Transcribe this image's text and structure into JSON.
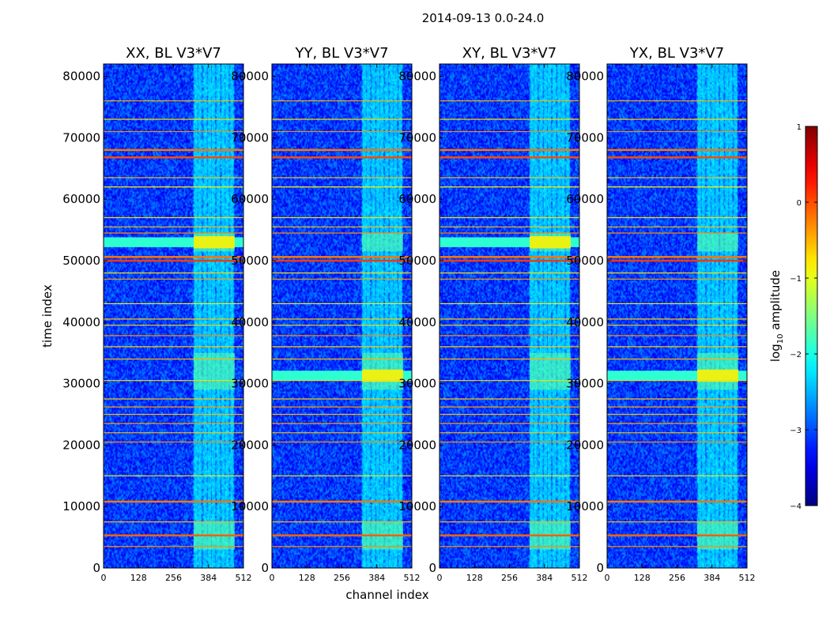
{
  "figure_title": "2014-09-13 0.0-24.0",
  "chart_data": {
    "type": "heatmap",
    "title": "2014-09-13 0.0-24.0",
    "xlabel": "channel index",
    "ylabel": "time index",
    "xlim": [
      0,
      512
    ],
    "ylim": [
      0,
      82000
    ],
    "x_ticks": [
      0,
      128,
      256,
      384,
      512
    ],
    "y_ticks": [
      0,
      10000,
      20000,
      30000,
      40000,
      50000,
      60000,
      70000,
      80000
    ],
    "panels": [
      {
        "title": "XX, BL V3*V7",
        "strong_band_time": 53000
      },
      {
        "title": "YY, BL V3*V7",
        "strong_band_time": 31300
      },
      {
        "title": "XY, BL V3*V7",
        "strong_band_time": 53000
      },
      {
        "title": "YX, BL V3*V7",
        "strong_band_time": 31300
      }
    ],
    "background_log_amplitude": -3.1,
    "rfi_channel_range": [
      330,
      480
    ],
    "rfi_channels": [
      338,
      352,
      372,
      388,
      402,
      420,
      438,
      452,
      470
    ],
    "rfi_time_blocks": [
      [
        3000,
        7500
      ],
      [
        29000,
        35000
      ],
      [
        51500,
        54500
      ]
    ],
    "horizontal_rfi_lines": [
      {
        "time": 3500,
        "log_amplitude": -0.3
      },
      {
        "time": 5300,
        "log_amplitude": -0.1
      },
      {
        "time": 7500,
        "log_amplitude": -0.5
      },
      {
        "time": 10800,
        "log_amplitude": -0.2
      },
      {
        "time": 15000,
        "log_amplitude": -0.8
      },
      {
        "time": 20500,
        "log_amplitude": -0.3
      },
      {
        "time": 22000,
        "log_amplitude": -0.6
      },
      {
        "time": 23500,
        "log_amplitude": -0.4
      },
      {
        "time": 25000,
        "log_amplitude": -0.5
      },
      {
        "time": 26200,
        "log_amplitude": -0.4
      },
      {
        "time": 27500,
        "log_amplitude": -0.6
      },
      {
        "time": 30500,
        "log_amplitude": -0.7
      },
      {
        "time": 34000,
        "log_amplitude": -0.5
      },
      {
        "time": 36000,
        "log_amplitude": -0.6
      },
      {
        "time": 37800,
        "log_amplitude": -0.3
      },
      {
        "time": 39500,
        "log_amplitude": -0.7
      },
      {
        "time": 40500,
        "log_amplitude": -0.6
      },
      {
        "time": 43000,
        "log_amplitude": -0.8
      },
      {
        "time": 47000,
        "log_amplitude": -0.4
      },
      {
        "time": 48000,
        "log_amplitude": -0.7
      },
      {
        "time": 50000,
        "log_amplitude": 0.1
      },
      {
        "time": 50600,
        "log_amplitude": -0.2
      },
      {
        "time": 54500,
        "log_amplitude": -0.3
      },
      {
        "time": 55500,
        "log_amplitude": -0.6
      },
      {
        "time": 57000,
        "log_amplitude": -0.7
      },
      {
        "time": 62000,
        "log_amplitude": -0.8
      },
      {
        "time": 63500,
        "log_amplitude": -0.6
      },
      {
        "time": 66800,
        "log_amplitude": 0.0
      },
      {
        "time": 68000,
        "log_amplitude": -0.2
      },
      {
        "time": 71000,
        "log_amplitude": -0.3
      },
      {
        "time": 73000,
        "log_amplitude": -0.7
      },
      {
        "time": 76000,
        "log_amplitude": -0.5
      }
    ],
    "colorbar": {
      "label": "log",
      "label_subscript": "10",
      "label_suffix": " amplitude",
      "range": [
        -4,
        1
      ],
      "ticks": [
        1,
        0,
        -1,
        -2,
        -3,
        -4
      ],
      "tick_labels": [
        "1",
        "0",
        "−1",
        "−2",
        "−3",
        "−4"
      ],
      "colormap": "jet"
    }
  }
}
